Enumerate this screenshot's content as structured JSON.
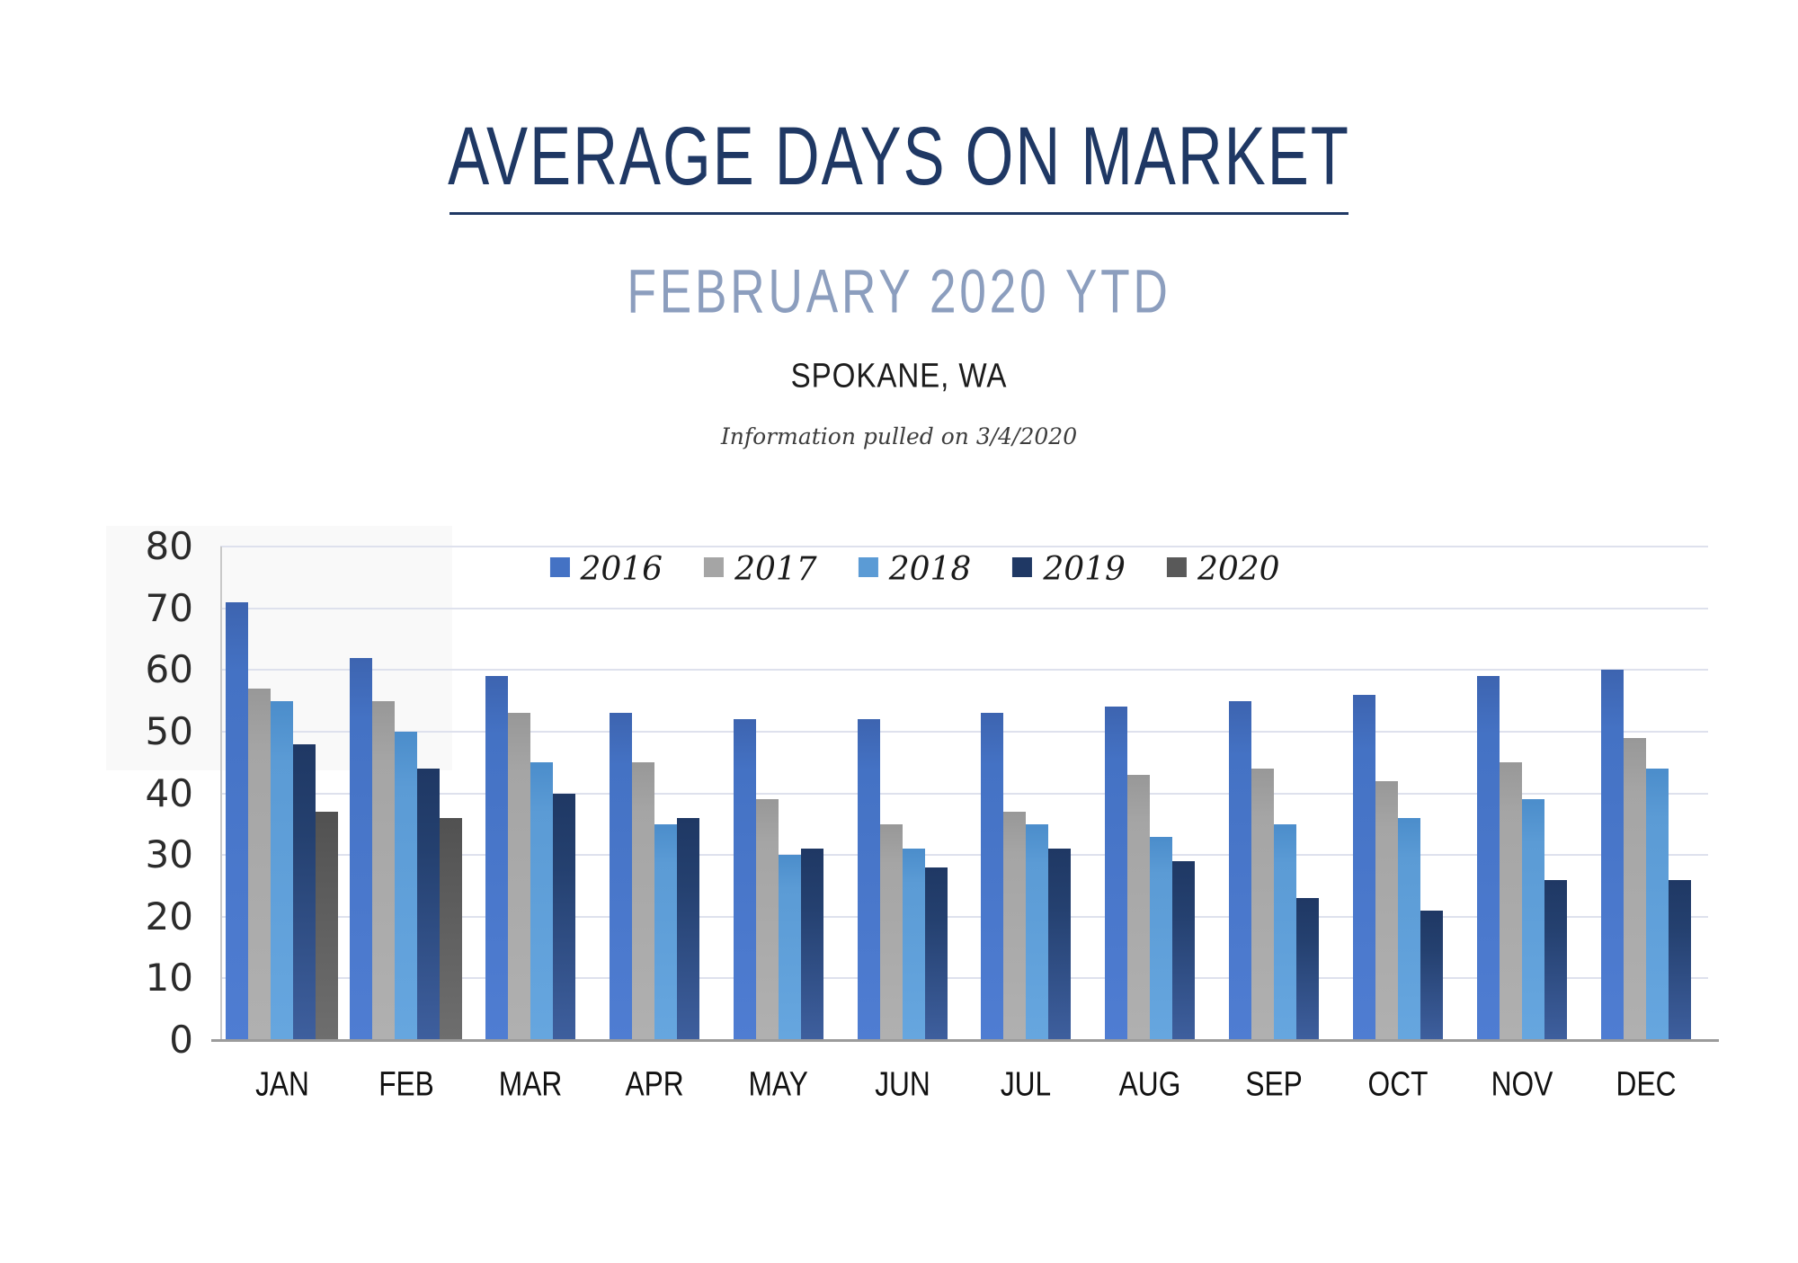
{
  "header": {
    "title": "AVERAGE DAYS ON MARKET",
    "subtitle": "FEBRUARY 2020 YTD",
    "location": "SPOKANE, WA",
    "note": "Information pulled on 3/4/2020"
  },
  "chart_data": {
    "type": "bar",
    "title": "AVERAGE DAYS ON MARKET",
    "subtitle": "FEBRUARY 2020 YTD",
    "categories": [
      "JAN",
      "FEB",
      "MAR",
      "APR",
      "MAY",
      "JUN",
      "JUL",
      "AUG",
      "SEP",
      "OCT",
      "NOV",
      "DEC"
    ],
    "series": [
      {
        "name": "2016",
        "color": "#4472C4",
        "values": [
          71,
          62,
          59,
          53,
          52,
          52,
          53,
          54,
          55,
          56,
          59,
          60
        ]
      },
      {
        "name": "2017",
        "color": "#A5A5A5",
        "values": [
          57,
          55,
          53,
          45,
          39,
          35,
          37,
          43,
          44,
          42,
          45,
          49
        ]
      },
      {
        "name": "2018",
        "color": "#5B9BD5",
        "values": [
          55,
          50,
          45,
          35,
          30,
          31,
          35,
          33,
          35,
          36,
          39,
          44
        ]
      },
      {
        "name": "2019",
        "color": "#1F3864",
        "values": [
          48,
          44,
          40,
          36,
          31,
          28,
          31,
          29,
          23,
          21,
          26,
          26
        ]
      },
      {
        "name": "2020",
        "color": "#595959",
        "values": [
          37,
          36,
          null,
          null,
          null,
          null,
          null,
          null,
          null,
          null,
          null,
          null
        ]
      }
    ],
    "xlabel": "",
    "ylabel": "",
    "ylim": [
      0,
      80
    ],
    "ytick_step": 10,
    "yticks": [
      0,
      10,
      20,
      30,
      40,
      50,
      60,
      70,
      80
    ],
    "grid": true,
    "legend_position": "top-center"
  }
}
